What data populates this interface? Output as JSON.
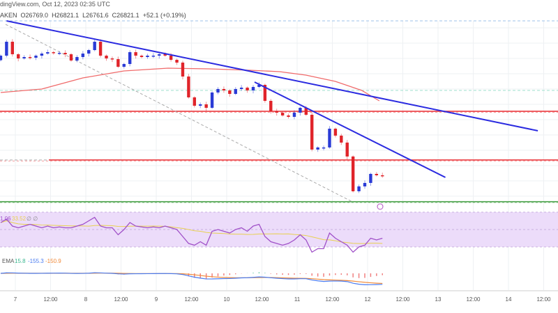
{
  "header": {
    "source_text": "dingView.com, Oct 12, 2023 02:35 UTC"
  },
  "ohlc": {
    "symbol": "AKEN",
    "open": "O26769.0",
    "high": "H26821.1",
    "low": "L26761.6",
    "close": "C26821.1",
    "change": "+52.1 (+0.19%)"
  },
  "colors": {
    "up": "#2a3bd6",
    "down": "#e0242a",
    "trendline": "#2b2be0",
    "ma": "#f06a6a",
    "resistance": "#e8282e",
    "support": "#3a9a3a",
    "rsi": "#a050c8",
    "rsi_ma": "#e8d050",
    "rsi_band": "#ecdcfa",
    "macd": "#4a7cf0",
    "signal": "#f08a3a"
  },
  "chart_data": {
    "type": "candlestick",
    "start": "2023-10-06 19:00",
    "interval_hours": 2,
    "first_open": 27820,
    "closes": [
      27859,
      27979,
      27871,
      27835,
      27847,
      27841,
      27859,
      27877,
      27889,
      27883,
      27883,
      27871,
      27817,
      27847,
      27877,
      27907,
      27979,
      27859,
      27835,
      27829,
      27763,
      27787,
      27889,
      27859,
      27847,
      27859,
      27859,
      27871,
      27859,
      27823,
      27799,
      27679,
      27499,
      27427,
      27439,
      27409,
      27541,
      27571,
      27559,
      27529,
      27571,
      27583,
      27559,
      27589,
      27607,
      27469,
      27379,
      27367,
      27343,
      27331,
      27367,
      27409,
      27349,
      27049,
      27067,
      27067,
      27229,
      27169,
      27109,
      26989,
      26689,
      26731,
      26761,
      26839,
      26827,
      26821
    ],
    "moving_average": [
      {
        "t": "2023-10-06 19:00",
        "p": 27541
      },
      {
        "t": "2023-10-07 09:00",
        "p": 27571
      },
      {
        "t": "2023-10-07 23:00",
        "p": 27667
      },
      {
        "t": "2023-10-08 13:00",
        "p": 27727
      },
      {
        "t": "2023-10-09 04:00",
        "p": 27751
      },
      {
        "t": "2023-10-09 18:00",
        "p": 27745
      },
      {
        "t": "2023-10-10 08:00",
        "p": 27733
      },
      {
        "t": "2023-10-10 18:00",
        "p": 27721
      },
      {
        "t": "2023-10-11 03:00",
        "p": 27691
      },
      {
        "t": "2023-10-11 13:00",
        "p": 27637
      },
      {
        "t": "2023-10-11 22:00",
        "p": 27559
      },
      {
        "t": "2023-10-12 04:00",
        "p": 27469
      }
    ],
    "trendlines": [
      {
        "from": {
          "t": "2023-10-06 21:00",
          "p": 28159
        },
        "to": {
          "t": "2023-10-14 10:00",
          "p": 27211
        }
      },
      {
        "from": {
          "t": "2023-10-10 09:30",
          "p": 27631
        },
        "to": {
          "t": "2023-10-13 02:30",
          "p": 26809
        }
      }
    ],
    "dashed_diagonal": {
      "from": {
        "t": "2023-10-06 20:40",
        "p": 28129
      },
      "to": {
        "t": "2023-10-11 18:45",
        "p": 26599
      }
    },
    "horizontal_levels": [
      {
        "p": 27379,
        "kind": "resistance"
      },
      {
        "p": 26959,
        "kind": "resistance"
      },
      {
        "p": 26599,
        "kind": "support"
      }
    ],
    "rsi": [
      58,
      62,
      54,
      52,
      54,
      56,
      54,
      52,
      54,
      52,
      53,
      52,
      52,
      54,
      56,
      60,
      64,
      54,
      52,
      52,
      44,
      50,
      58,
      54,
      53,
      52,
      53,
      52,
      54,
      52,
      50,
      42,
      34,
      32,
      36,
      32,
      48,
      50,
      48,
      46,
      50,
      52,
      48,
      54,
      56,
      42,
      36,
      34,
      32,
      34,
      38,
      44,
      38,
      24,
      28,
      28,
      46,
      40,
      36,
      32,
      24,
      30,
      32,
      40,
      38,
      40
    ],
    "rsi_band": [
      30,
      70
    ],
    "rsi_labels": [
      "1.06",
      "33.52",
      "∅ ∅"
    ],
    "macd_labels": [
      "EMA",
      "15.8",
      "-155.3",
      "-150.9"
    ],
    "x_ticks": [
      "7",
      "12:00",
      "8",
      "12:00",
      "9",
      "12:00",
      "10",
      "12:00",
      "11",
      "12:00",
      "12",
      "12:00",
      "13",
      "12:00",
      "14",
      "12:00"
    ]
  }
}
